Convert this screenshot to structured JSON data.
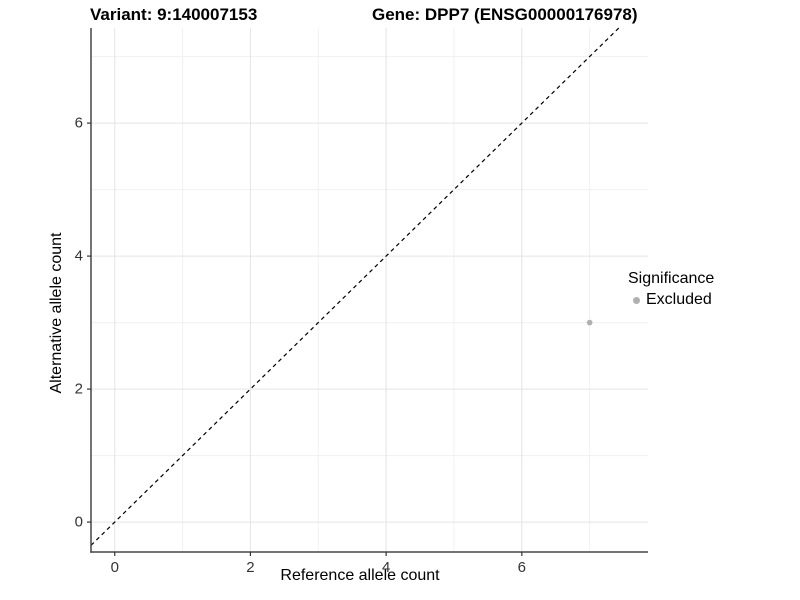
{
  "chart_data": {
    "type": "scatter",
    "title_left": "Variant: 9:140007153",
    "title_right": "Gene: DPP7 (ENSG00000176978)",
    "xlabel": "Reference allele count",
    "ylabel": "Alternative allele count",
    "xlim": [
      -0.35,
      7.86
    ],
    "ylim": [
      -0.45,
      7.43
    ],
    "x_ticks": [
      0,
      2,
      4,
      6
    ],
    "y_ticks": [
      0,
      2,
      4,
      6
    ],
    "x_minor_ticks": [
      1,
      3,
      5,
      7
    ],
    "y_minor_ticks": [
      1,
      3,
      5,
      7
    ],
    "grid": "on",
    "legend_position": "right",
    "reference_line": {
      "slope": 1,
      "intercept": 0,
      "style": "dashed",
      "color": "#000000"
    },
    "series": [
      {
        "name": "Excluded",
        "color": "#b0b0b0",
        "point_radius": 2.8,
        "points": [
          [
            7,
            3
          ]
        ]
      }
    ],
    "legend": {
      "title": "Significance",
      "entries": [
        {
          "label": "Excluded",
          "color": "#b0b0b0"
        }
      ]
    },
    "colors": {
      "background": "#ffffff",
      "grid_major": "#e4e4e4",
      "grid_minor": "#f0f0f0",
      "axis_line": "#474747",
      "tick_mark": "#333333",
      "tick_label": "#333333",
      "title_text": "#000000",
      "point": "#b0b0b0",
      "reference_line": "#000000"
    }
  }
}
